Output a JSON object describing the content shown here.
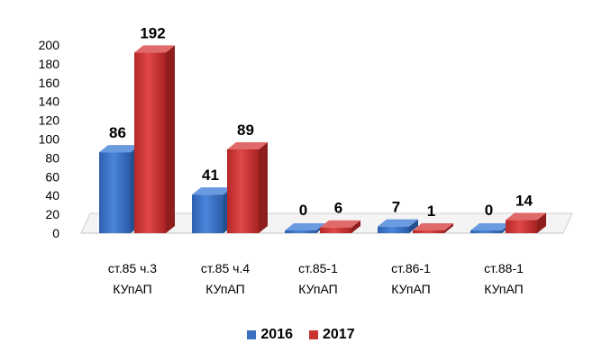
{
  "chart_data": {
    "type": "bar",
    "categories": [
      [
        "ст.85 ч.3",
        "КУпАП"
      ],
      [
        "ст.85 ч.4",
        "КУпАП"
      ],
      [
        "ст.85-1",
        "КУпАП"
      ],
      [
        "ст.86-1",
        "КУпАП"
      ],
      [
        "ст.88-1",
        "КУпАП"
      ]
    ],
    "series": [
      {
        "name": "2016",
        "values": [
          86,
          41,
          0,
          7,
          0
        ],
        "color": "#3a6fc0"
      },
      {
        "name": "2017",
        "values": [
          192,
          89,
          6,
          1,
          14
        ],
        "color": "#cc3333"
      }
    ],
    "yticks": [
      "0",
      "20",
      "40",
      "60",
      "80",
      "100",
      "120",
      "140",
      "160",
      "180",
      "200"
    ],
    "ylim": [
      0,
      200
    ],
    "grid": false,
    "legend_position": "bottom",
    "style": "3d-clustered-column"
  }
}
